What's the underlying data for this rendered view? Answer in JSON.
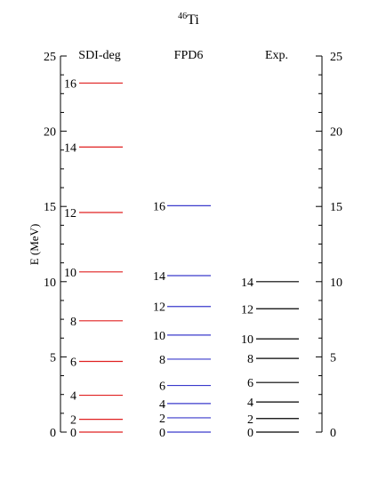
{
  "chart_data": {
    "type": "level-scheme",
    "title": {
      "sup": "46",
      "main": "Ti"
    },
    "ylabel": "E (MeV)",
    "ylim": [
      0,
      25
    ],
    "yticks": [
      0,
      5,
      10,
      15,
      20,
      25
    ],
    "yticks_minor_step": 1.25,
    "columns": [
      {
        "name": "SDI-deg",
        "color": "#e02020",
        "levels": [
          {
            "spin": "0",
            "energy": 0.0
          },
          {
            "spin": "2",
            "energy": 0.85
          },
          {
            "spin": "4",
            "energy": 2.45
          },
          {
            "spin": "6",
            "energy": 4.7
          },
          {
            "spin": "8",
            "energy": 7.4
          },
          {
            "spin": "10",
            "energy": 10.65
          },
          {
            "spin": "12",
            "energy": 14.6
          },
          {
            "spin": "14",
            "energy": 18.95
          },
          {
            "spin": "16",
            "energy": 23.2
          }
        ]
      },
      {
        "name": "FPD6",
        "color": "#3a3acc",
        "levels": [
          {
            "spin": "0",
            "energy": 0.0
          },
          {
            "spin": "2",
            "energy": 0.95
          },
          {
            "spin": "4",
            "energy": 1.9
          },
          {
            "spin": "6",
            "energy": 3.1
          },
          {
            "spin": "8",
            "energy": 4.85
          },
          {
            "spin": "10",
            "energy": 6.45
          },
          {
            "spin": "12",
            "energy": 8.35
          },
          {
            "spin": "14",
            "energy": 10.4
          },
          {
            "spin": "16",
            "energy": 15.05
          }
        ]
      },
      {
        "name": "Exp.",
        "color": "#000000",
        "levels": [
          {
            "spin": "0",
            "energy": 0.0
          },
          {
            "spin": "2",
            "energy": 0.9
          },
          {
            "spin": "4",
            "energy": 2.0
          },
          {
            "spin": "6",
            "energy": 3.3
          },
          {
            "spin": "8",
            "energy": 4.9
          },
          {
            "spin": "10",
            "energy": 6.2
          },
          {
            "spin": "12",
            "energy": 8.2
          },
          {
            "spin": "14",
            "energy": 10.0
          }
        ]
      }
    ]
  }
}
